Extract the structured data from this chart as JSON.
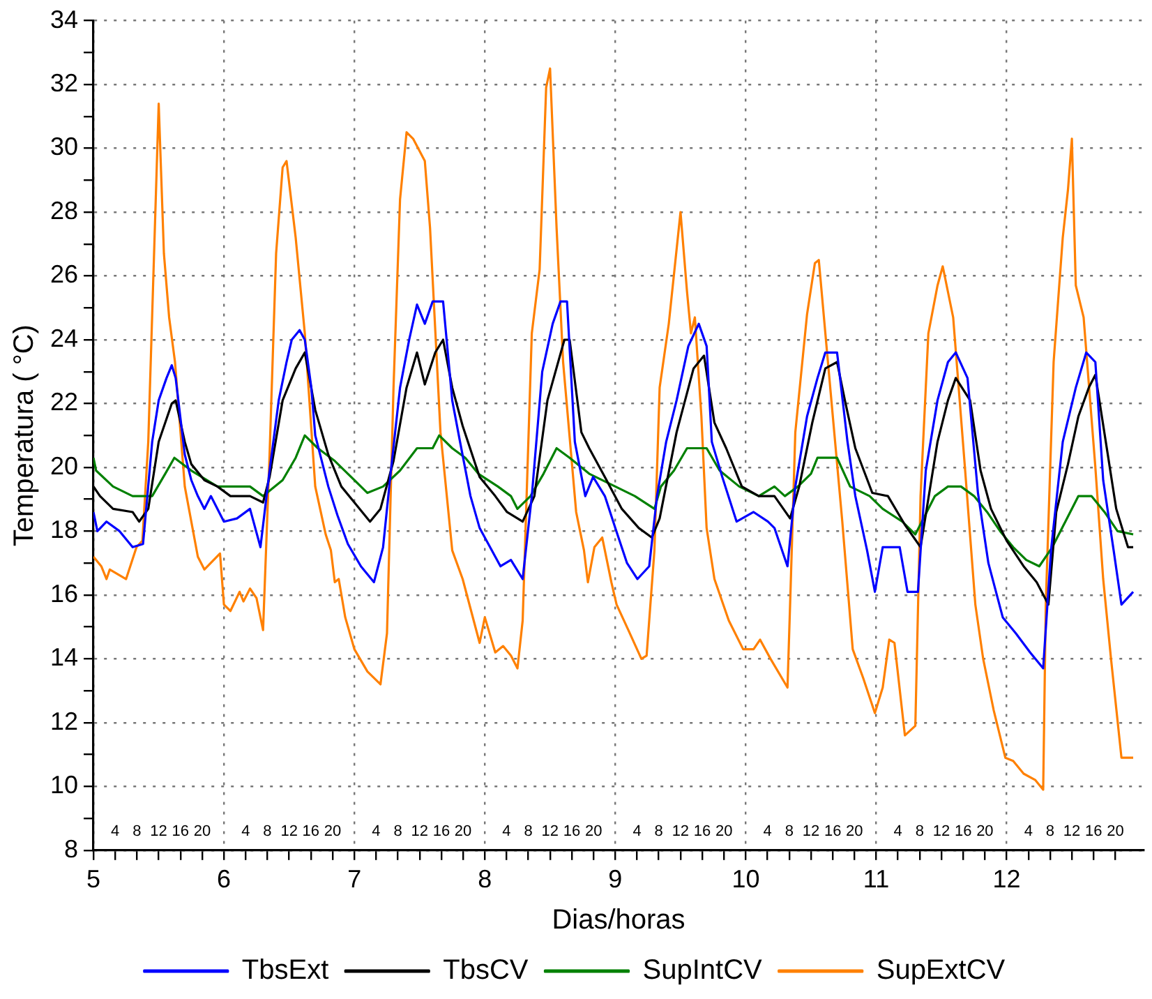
{
  "chart_data": {
    "type": "line",
    "xlabel": "Dias/horas",
    "ylabel": "Temperatura ( °C)",
    "legend": "bottom",
    "grid": true,
    "marker": "none",
    "line_style": "solid",
    "xlim": [
      5,
      13.05
    ],
    "xticks": [
      5,
      {
        "value": 5.1667,
        "label": null
      },
      {
        "value": 5.3333,
        "label": null
      },
      {
        "value": 5.5,
        "label": null
      },
      {
        "value": 5.6667,
        "label": null
      },
      {
        "value": 5.8333,
        "label": null
      },
      6,
      {
        "value": 6.1667,
        "label": null
      },
      {
        "value": 6.3333,
        "label": null
      },
      {
        "value": 6.5,
        "label": null
      },
      {
        "value": 6.6667,
        "label": null
      },
      {
        "value": 6.8333,
        "label": null
      },
      7,
      {
        "value": 7.1667,
        "label": null
      },
      {
        "value": 7.3333,
        "label": null
      },
      {
        "value": 7.5,
        "label": null
      },
      {
        "value": 7.6667,
        "label": null
      },
      {
        "value": 7.8333,
        "label": null
      },
      8,
      {
        "value": 8.1667,
        "label": null
      },
      {
        "value": 8.3333,
        "label": null
      },
      {
        "value": 8.5,
        "label": null
      },
      {
        "value": 8.6667,
        "label": null
      },
      {
        "value": 8.8333,
        "label": null
      },
      9,
      {
        "value": 9.1667,
        "label": null
      },
      {
        "value": 9.3333,
        "label": null
      },
      {
        "value": 9.5,
        "label": null
      },
      {
        "value": 9.6667,
        "label": null
      },
      {
        "value": 9.8333,
        "label": null
      },
      10,
      {
        "value": 10.1667,
        "label": null
      },
      {
        "value": 10.3333,
        "label": null
      },
      {
        "value": 10.5,
        "label": null
      },
      {
        "value": 10.6667,
        "label": null
      },
      {
        "value": 10.8333,
        "label": null
      },
      11,
      {
        "value": 11.1667,
        "label": null
      },
      {
        "value": 11.3333,
        "label": null
      },
      {
        "value": 11.5,
        "label": null
      },
      {
        "value": 11.6667,
        "label": null
      },
      {
        "value": 11.8333,
        "label": null
      },
      12,
      {
        "value": 12.1667,
        "label": null
      },
      {
        "value": 12.3333,
        "label": null
      },
      {
        "value": 12.5,
        "label": null
      },
      {
        "value": 12.6667,
        "label": null
      },
      {
        "value": 12.8333,
        "label": null
      }
    ],
    "annotations": [
      "4",
      "8",
      "12",
      "16",
      "20",
      "4",
      "8",
      "12",
      "16",
      "20",
      "4",
      "8",
      "12",
      "16",
      "20",
      "4",
      "8",
      "12",
      "16",
      "20",
      "4",
      "8",
      "12",
      "16",
      "20",
      "4",
      "8",
      "12",
      "16",
      "20",
      "4",
      "8",
      "12",
      "16",
      "20",
      "4",
      "8",
      "12",
      "16",
      "20"
    ],
    "ylim": [
      8,
      34
    ],
    "yticks": [
      8,
      {
        "value": 9,
        "label": null
      },
      10,
      {
        "value": 11,
        "label": null
      },
      12,
      {
        "value": 13,
        "label": null
      },
      14,
      {
        "value": 15,
        "label": null
      },
      16,
      {
        "value": 17,
        "label": null
      },
      18,
      {
        "value": 19,
        "label": null
      },
      20,
      {
        "value": 21,
        "label": null
      },
      22,
      {
        "value": 23,
        "label": null
      },
      24,
      {
        "value": 25,
        "label": null
      },
      26,
      {
        "value": 27,
        "label": null
      },
      28,
      {
        "value": 29,
        "label": null
      },
      30,
      {
        "value": 31,
        "label": null
      },
      32,
      {
        "value": 33,
        "label": null
      },
      34
    ],
    "series": [
      {
        "name": "TbsExt",
        "color": "#0000ff",
        "x": [
          5,
          5.03,
          5.1,
          5.2,
          5.3,
          5.38,
          5.45,
          5.5,
          5.56,
          5.6,
          5.63,
          5.7,
          5.75,
          5.8,
          5.85,
          5.9,
          6,
          6.1,
          6.2,
          6.28,
          6.35,
          6.42,
          6.48,
          6.52,
          6.58,
          6.62,
          6.67,
          6.7,
          6.8,
          6.87,
          6.95,
          7.05,
          7.15,
          7.22,
          7.28,
          7.35,
          7.42,
          7.48,
          7.54,
          7.6,
          7.68,
          7.75,
          7.81,
          7.89,
          7.96,
          8.04,
          8.12,
          8.2,
          8.29,
          8.36,
          8.44,
          8.52,
          8.58,
          8.63,
          8.69,
          8.77,
          8.83,
          8.92,
          9,
          9.09,
          9.17,
          9.26,
          9.32,
          9.39,
          9.47,
          9.56,
          9.64,
          9.7,
          9.74,
          9.82,
          9.93,
          10.06,
          10.17,
          10.22,
          10.32,
          10.38,
          10.47,
          10.55,
          10.61,
          10.7,
          10.78,
          10.84,
          10.93,
          10.99,
          11.05,
          11.18,
          11.24,
          11.32,
          11.38,
          11.47,
          11.55,
          11.61,
          11.7,
          11.78,
          11.86,
          11.97,
          12.07,
          12.18,
          12.28,
          12.34,
          12.43,
          12.53,
          12.61,
          12.68,
          12.74,
          12.82,
          12.88,
          12.97
        ],
        "values": [
          18.6,
          18,
          18.3,
          18,
          17.5,
          17.6,
          20.8,
          22.1,
          22.8,
          23.2,
          22.8,
          20.4,
          19.6,
          19.1,
          18.7,
          19.1,
          18.3,
          18.4,
          18.7,
          17.5,
          19.9,
          22.1,
          23.3,
          24,
          24.3,
          24,
          22.5,
          21,
          19.4,
          18.5,
          17.6,
          16.9,
          16.4,
          17.5,
          19.9,
          22.5,
          24,
          25.1,
          24.5,
          25.2,
          25.2,
          22.1,
          20.8,
          19.1,
          18.1,
          17.5,
          16.9,
          17.1,
          16.5,
          19.1,
          23,
          24.5,
          25.2,
          25.2,
          20.8,
          19.1,
          19.7,
          19.1,
          18.1,
          17,
          16.5,
          16.9,
          19.1,
          20.8,
          22.1,
          23.8,
          24.5,
          23.8,
          20.8,
          19.7,
          18.3,
          18.6,
          18.3,
          18.1,
          16.9,
          19.4,
          21.6,
          22.8,
          23.6,
          23.6,
          20.8,
          19.1,
          17.4,
          16.1,
          17.5,
          17.5,
          16.1,
          16.1,
          19.9,
          22.1,
          23.3,
          23.6,
          22.8,
          19.2,
          17,
          15.3,
          14.8,
          14.2,
          13.7,
          17.4,
          20.8,
          22.5,
          23.6,
          23.3,
          19.6,
          17.4,
          15.7,
          16.1
        ]
      },
      {
        "name": "TbsCV",
        "color": "#000000",
        "x": [
          5,
          5.05,
          5.15,
          5.3,
          5.35,
          5.42,
          5.5,
          5.6,
          5.63,
          5.7,
          5.75,
          5.85,
          5.95,
          6.05,
          6.2,
          6.3,
          6.35,
          6.45,
          6.55,
          6.62,
          6.7,
          6.8,
          6.9,
          7,
          7.12,
          7.2,
          7.3,
          7.4,
          7.48,
          7.54,
          7.62,
          7.68,
          7.75,
          7.83,
          7.96,
          8.08,
          8.17,
          8.29,
          8.38,
          8.48,
          8.61,
          8.65,
          8.74,
          8.8,
          8.92,
          9.05,
          9.18,
          9.28,
          9.34,
          9.47,
          9.6,
          9.68,
          9.76,
          9.85,
          9.97,
          10.1,
          10.22,
          10.34,
          10.41,
          10.51,
          10.61,
          10.7,
          10.76,
          10.84,
          10.97,
          11.09,
          11.22,
          11.34,
          11.47,
          11.55,
          11.61,
          11.72,
          11.8,
          11.88,
          12,
          12.13,
          12.23,
          12.32,
          12.38,
          12.47,
          12.55,
          12.63,
          12.68,
          12.76,
          12.84,
          12.93,
          12.97
        ],
        "values": [
          19.4,
          19.1,
          18.7,
          18.6,
          18.3,
          18.7,
          20.8,
          22,
          22.1,
          20.8,
          20.1,
          19.6,
          19.4,
          19.1,
          19.1,
          18.9,
          19.7,
          22.1,
          23.1,
          23.6,
          21.8,
          20.4,
          19.4,
          18.9,
          18.3,
          18.7,
          20.2,
          22.5,
          23.6,
          22.6,
          23.6,
          24,
          22.5,
          21.3,
          19.7,
          19.1,
          18.6,
          18.3,
          19.1,
          22.1,
          24,
          24,
          21.1,
          20.6,
          19.7,
          18.7,
          18.1,
          17.8,
          18.4,
          21.1,
          23.1,
          23.5,
          21.4,
          20.6,
          19.4,
          19.1,
          19.1,
          18.4,
          19.4,
          21.4,
          23.1,
          23.3,
          22.1,
          20.6,
          19.2,
          19.1,
          18.2,
          17.5,
          20.8,
          22.1,
          22.8,
          22.1,
          19.9,
          18.7,
          17.7,
          16.9,
          16.4,
          15.7,
          18.6,
          20.1,
          21.6,
          22.5,
          22.9,
          20.8,
          18.7,
          17.5,
          17.5
        ]
      },
      {
        "name": "SupIntCV",
        "color": "#008000",
        "x": [
          5,
          5.02,
          5.15,
          5.3,
          5.45,
          5.55,
          5.62,
          5.75,
          5.95,
          6.2,
          6.3,
          6.45,
          6.55,
          6.62,
          6.72,
          6.85,
          6.95,
          7.1,
          7.22,
          7.35,
          7.48,
          7.6,
          7.65,
          7.75,
          7.85,
          7.95,
          8.1,
          8.2,
          8.25,
          8.35,
          8.45,
          8.55,
          8.65,
          8.8,
          9,
          9.15,
          9.3,
          9.35,
          9.45,
          9.55,
          9.7,
          9.8,
          9.95,
          10.1,
          10.22,
          10.3,
          10.4,
          10.5,
          10.55,
          10.7,
          10.8,
          10.95,
          11.05,
          11.2,
          11.3,
          11.35,
          11.45,
          11.55,
          11.65,
          11.75,
          11.85,
          11.95,
          12.05,
          12.15,
          12.25,
          12.35,
          12.45,
          12.55,
          12.65,
          12.75,
          12.85,
          12.97
        ],
        "values": [
          20.3,
          19.9,
          19.4,
          19.1,
          19.1,
          19.8,
          20.3,
          19.9,
          19.4,
          19.4,
          19.1,
          19.6,
          20.3,
          21,
          20.6,
          20.2,
          19.8,
          19.2,
          19.4,
          19.9,
          20.6,
          20.6,
          21,
          20.6,
          20.3,
          19.8,
          19.4,
          19.1,
          18.7,
          19.1,
          19.8,
          20.6,
          20.3,
          19.8,
          19.4,
          19.1,
          18.7,
          19.4,
          19.9,
          20.6,
          20.6,
          19.9,
          19.4,
          19.1,
          19.4,
          19.1,
          19.4,
          19.8,
          20.3,
          20.3,
          19.4,
          19.1,
          18.7,
          18.3,
          17.9,
          18.3,
          19.1,
          19.4,
          19.4,
          19.1,
          18.6,
          18,
          17.5,
          17.1,
          16.9,
          17.5,
          18.3,
          19.1,
          19.1,
          18.6,
          18,
          17.9
        ]
      },
      {
        "name": "SupExtCV",
        "color": "#ff8000",
        "x": [
          5,
          5.06,
          5.1,
          5.125,
          5.25,
          5.33,
          5.375,
          5.42,
          5.5,
          5.54,
          5.58,
          5.625,
          5.7,
          5.8,
          5.85,
          5.97,
          6,
          6.05,
          6.12,
          6.15,
          6.2,
          6.25,
          6.3,
          6.35,
          6.4,
          6.45,
          6.48,
          6.55,
          6.62,
          6.7,
          6.78,
          6.82,
          6.85,
          6.88,
          6.93,
          7,
          7.1,
          7.2,
          7.25,
          7.3,
          7.35,
          7.4,
          7.45,
          7.54,
          7.58,
          7.66,
          7.75,
          7.83,
          7.96,
          8,
          8.08,
          8.14,
          8.2,
          8.25,
          8.29,
          8.36,
          8.42,
          8.47,
          8.5,
          8.55,
          8.6,
          8.7,
          8.76,
          8.79,
          8.84,
          8.9,
          8.97,
          9.01,
          9.1,
          9.2,
          9.24,
          9.3,
          9.34,
          9.41,
          9.5,
          9.55,
          9.58,
          9.61,
          9.66,
          9.7,
          9.76,
          9.87,
          9.98,
          10.06,
          10.11,
          10.19,
          10.32,
          10.34,
          10.38,
          10.47,
          10.53,
          10.56,
          10.63,
          10.74,
          10.82,
          10.9,
          10.99,
          11.05,
          11.1,
          11.14,
          11.22,
          11.3,
          11.34,
          11.4,
          11.47,
          11.51,
          11.59,
          11.68,
          11.76,
          11.82,
          11.9,
          11.99,
          12.05,
          12.13,
          12.22,
          12.28,
          12.3,
          12.36,
          12.43,
          12.47,
          12.5,
          12.53,
          12.59,
          12.68,
          12.74,
          12.8,
          12.88,
          12.97
        ],
        "values": [
          17.2,
          16.9,
          16.5,
          16.8,
          16.5,
          17.5,
          17.7,
          20.8,
          31.4,
          26.7,
          24.7,
          23.3,
          19.4,
          17.2,
          16.8,
          17.3,
          15.7,
          15.5,
          16.1,
          15.8,
          16.2,
          15.9,
          14.9,
          20.4,
          26.7,
          29.4,
          29.6,
          27.2,
          24.2,
          19.4,
          17.9,
          17.4,
          16.4,
          16.5,
          15.3,
          14.3,
          13.6,
          13.2,
          14.8,
          22.5,
          28.4,
          30.5,
          30.3,
          29.6,
          27.5,
          21.1,
          17.4,
          16.5,
          14.5,
          15.3,
          14.2,
          14.4,
          14.1,
          13.7,
          15.2,
          24.2,
          26.2,
          31.9,
          32.5,
          27.5,
          23.3,
          18.6,
          17.4,
          16.4,
          17.5,
          17.8,
          16.4,
          15.7,
          14.9,
          14,
          14.1,
          17.4,
          22.5,
          24.5,
          28,
          25.5,
          24.2,
          24.7,
          21.6,
          18.1,
          16.5,
          15.2,
          14.3,
          14.3,
          14.6,
          14,
          13.1,
          15.7,
          21.1,
          24.8,
          26.4,
          26.5,
          23.3,
          18.3,
          14.3,
          13.4,
          12.3,
          13.1,
          14.6,
          14.5,
          11.6,
          11.9,
          19.1,
          24.2,
          25.7,
          26.3,
          24.7,
          20,
          15.7,
          14,
          12.4,
          10.9,
          10.8,
          10.4,
          10.2,
          9.9,
          15.7,
          23.3,
          27.2,
          28.7,
          30.3,
          25.7,
          24.7,
          20,
          16.5,
          14,
          10.9,
          10.9
        ]
      }
    ]
  }
}
